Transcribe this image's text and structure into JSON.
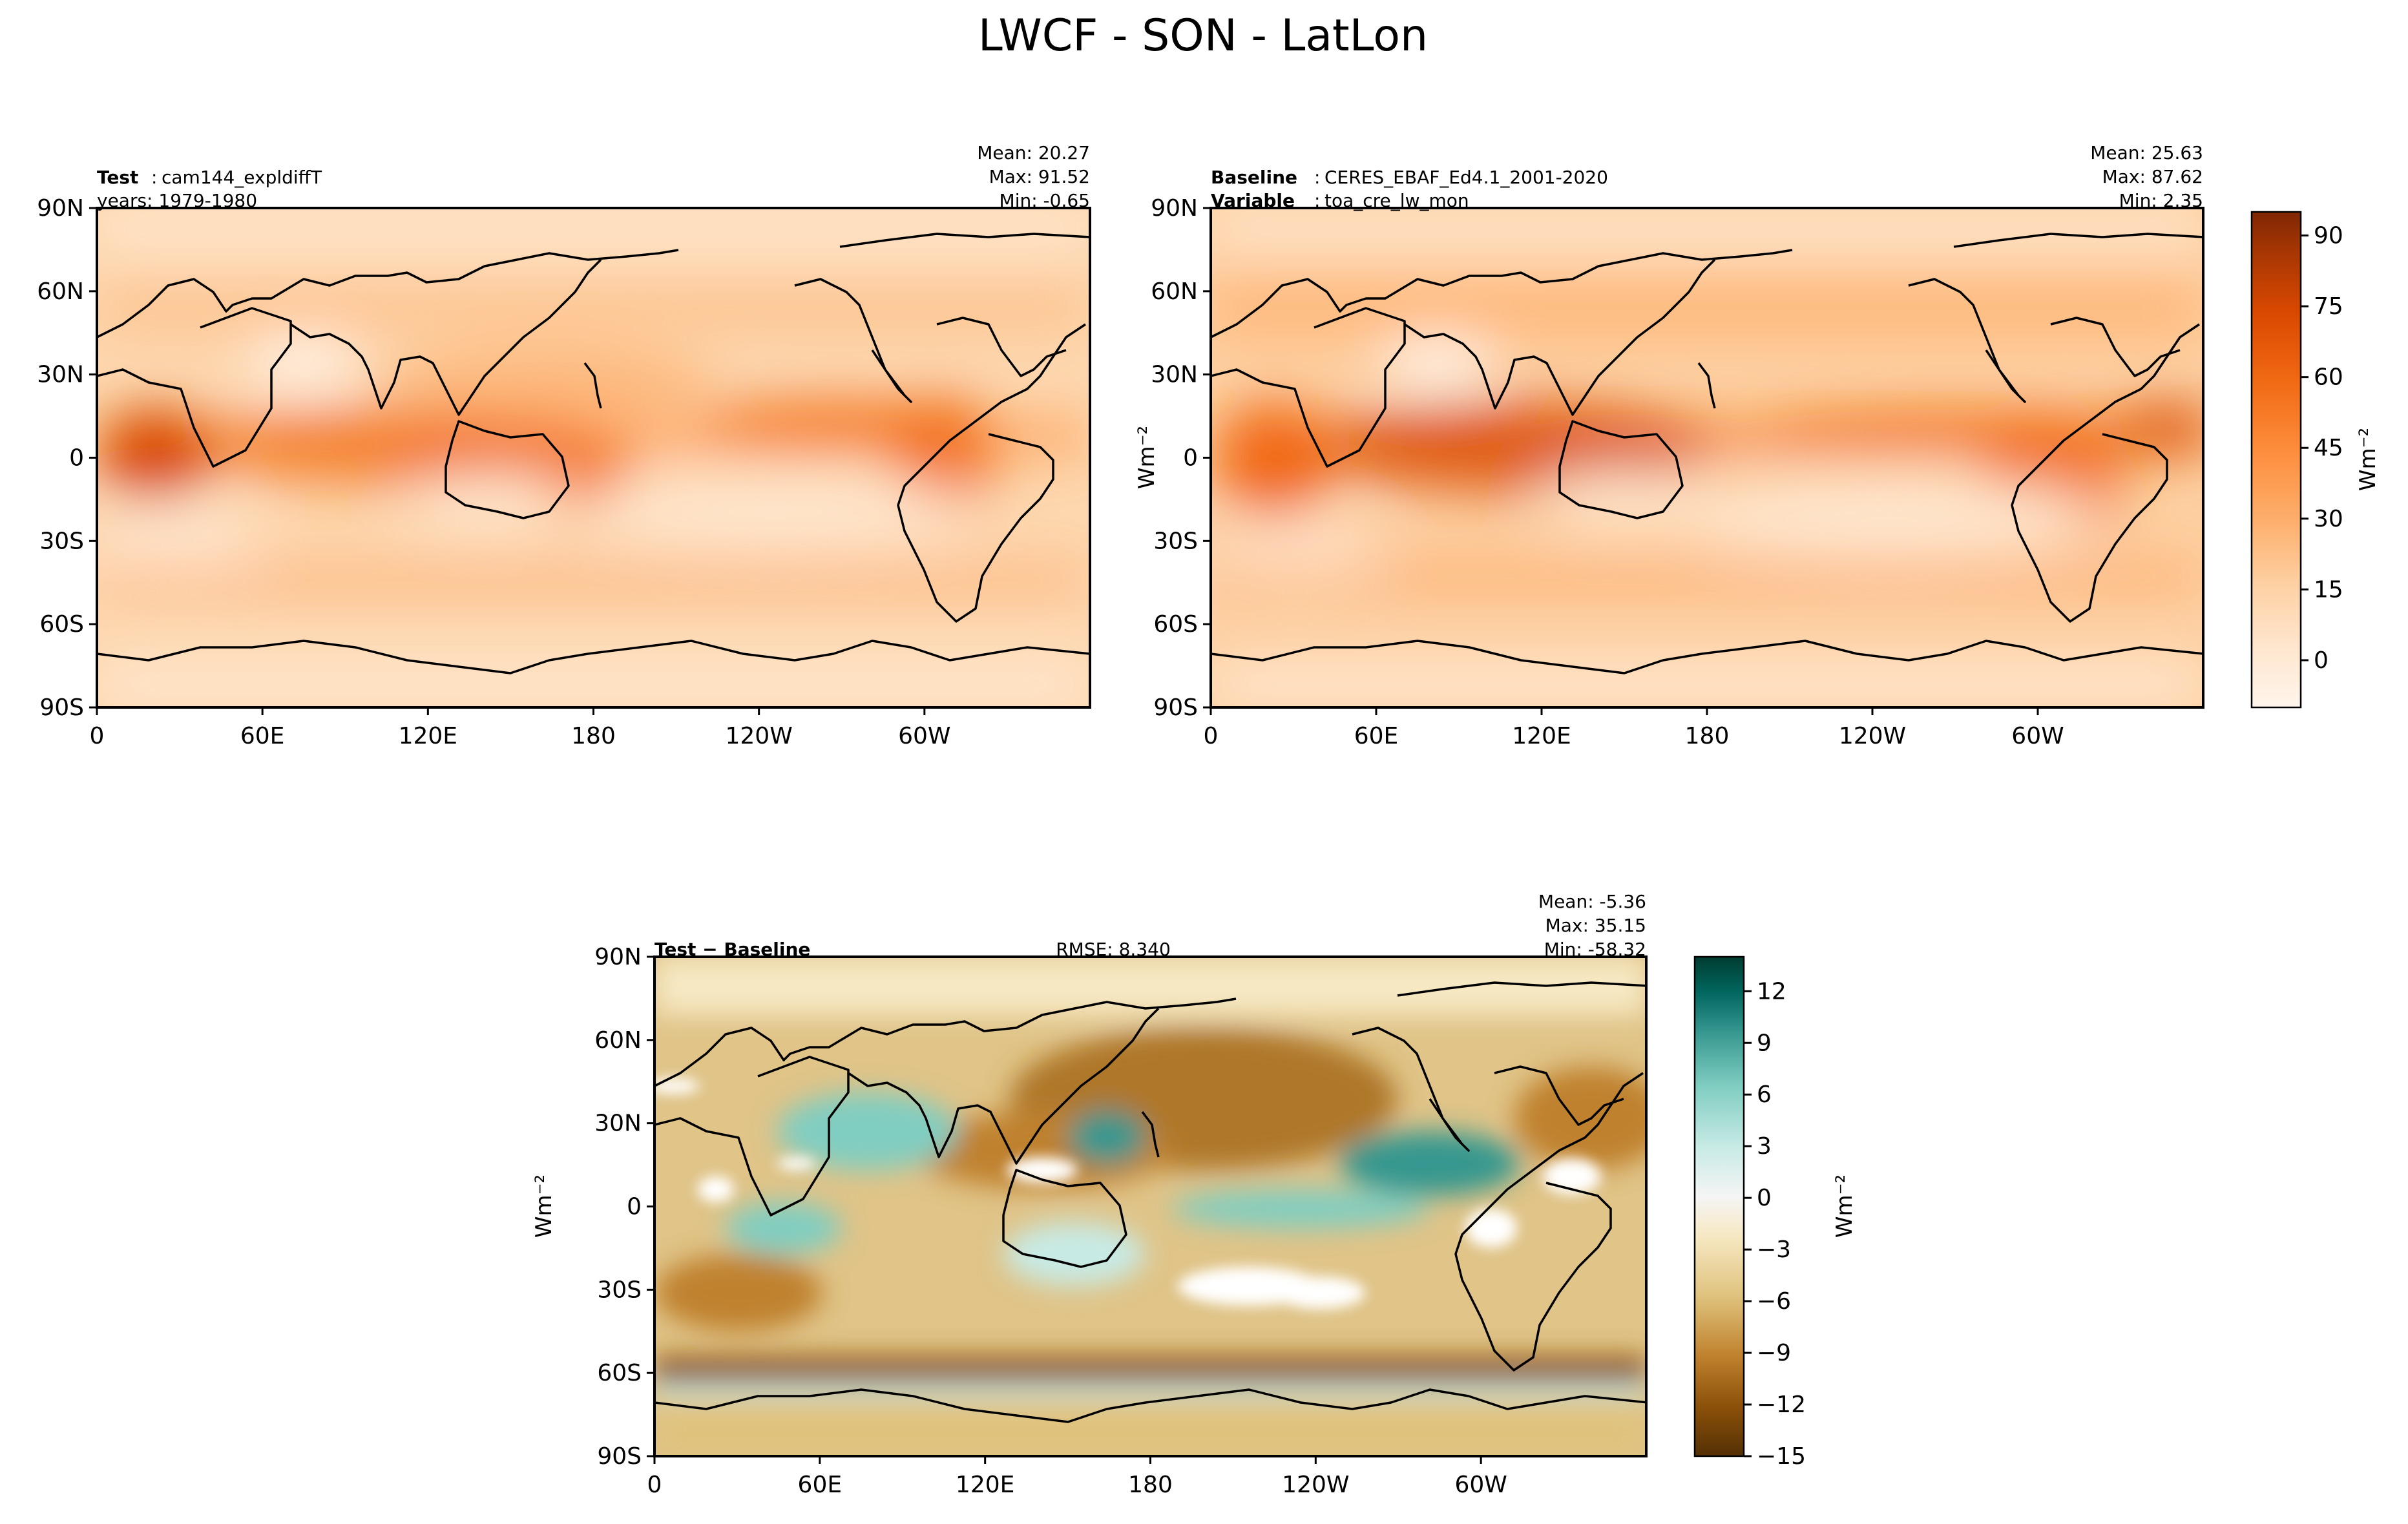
{
  "figure": {
    "title": "LWCF - SON - LatLon"
  },
  "colors": {
    "oranges": [
      "#fff5eb",
      "#fee6ce",
      "#fdd0a2",
      "#fdae6b",
      "#fd8d3c",
      "#f16913",
      "#d94801",
      "#a63603",
      "#7f2704"
    ],
    "brbg": [
      "#543005",
      "#8c510a",
      "#bf812d",
      "#dfc27d",
      "#f6e8c3",
      "#f5f5f5",
      "#c7eae5",
      "#80cdc1",
      "#35978f",
      "#01665e",
      "#003c30"
    ]
  },
  "chart_data": [
    {
      "type": "heatmap",
      "panel": "test",
      "header": {
        "label": "Test",
        "sep": ":",
        "value": "cam144_expldiffT",
        "line2": "years: 1979-1980"
      },
      "stats": {
        "mean": "Mean: 20.27",
        "max": "Max: 91.52",
        "min": "Min: -0.65"
      },
      "y_ticks": [
        "90N",
        "60N",
        "30N",
        "0",
        "30S",
        "60S",
        "90S"
      ],
      "x_ticks": [
        "0",
        "60E",
        "120E",
        "180",
        "120W",
        "60W"
      ],
      "xlim": [
        0,
        360
      ],
      "ylim": [
        -90,
        90
      ]
    },
    {
      "type": "heatmap",
      "panel": "baseline",
      "header": {
        "label": "Baseline",
        "sep": ":",
        "value": "CERES_EBAF_Ed4.1_2001-2020",
        "label2": "Variable",
        "value2": "toa_cre_lw_mon"
      },
      "stats": {
        "mean": "Mean: 25.63",
        "max": "Max: 87.62",
        "min": "Min:  2.35"
      },
      "y_ticks": [
        "90N",
        "60N",
        "30N",
        "0",
        "30S",
        "60S",
        "90S"
      ],
      "x_ticks": [
        "0",
        "60E",
        "120E",
        "180",
        "120W",
        "60W"
      ],
      "xlim": [
        0,
        360
      ],
      "ylim": [
        -90,
        90
      ],
      "colorbar": {
        "ticks": [
          "90",
          "75",
          "60",
          "45",
          "30",
          "15",
          "0"
        ],
        "range": [
          -10,
          95
        ],
        "label": "Wm⁻²"
      }
    },
    {
      "type": "heatmap",
      "panel": "difference",
      "header": {
        "label": "Test − Baseline"
      },
      "rmse": "RMSE: 8.340",
      "stats": {
        "mean": "Mean: -5.36",
        "max": "Max: 35.15",
        "min": "Min: -58.32"
      },
      "y_ticks": [
        "90N",
        "60N",
        "30N",
        "0",
        "30S",
        "60S",
        "90S"
      ],
      "x_ticks": [
        "0",
        "60E",
        "120E",
        "180",
        "120W",
        "60W"
      ],
      "xlim": [
        0,
        360
      ],
      "ylim": [
        -90,
        90
      ],
      "ylabel": "Wm⁻²",
      "colorbar": {
        "ticks": [
          "12",
          "9",
          "6",
          "3",
          "0",
          "−3",
          "−6",
          "−9",
          "−12",
          "−15"
        ],
        "range": [
          -15,
          14
        ],
        "label": "Wm⁻²"
      }
    }
  ]
}
